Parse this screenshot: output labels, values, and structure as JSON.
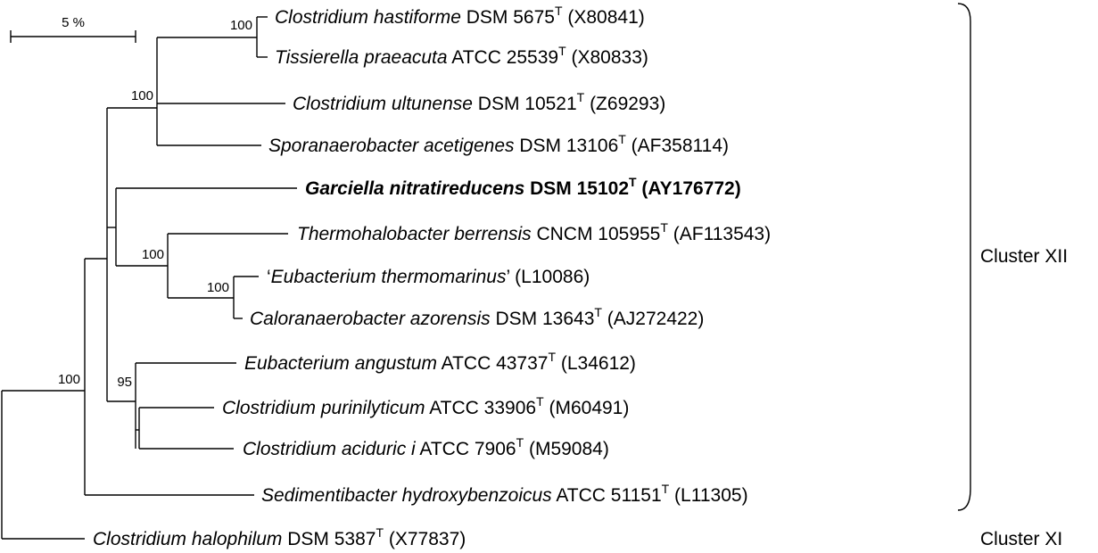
{
  "scale_bar": {
    "label": "5 %"
  },
  "bootstrap": {
    "b1": "100",
    "b2": "100",
    "b3": "100",
    "b4": "100",
    "b5": "95",
    "b6": "100"
  },
  "taxa": [
    {
      "genus_species": "Clostridium hastiforme",
      "strain": " DSM 5675",
      "type_mark": "T",
      "accession": " (X80841)"
    },
    {
      "genus_species": "Tissierella praeacuta",
      "strain": " ATCC 25539",
      "type_mark": "T",
      "accession": " (X80833)"
    },
    {
      "genus_species": "Clostridium ultunense",
      "strain": " DSM 10521",
      "type_mark": "T",
      "accession": " (Z69293)"
    },
    {
      "genus_species": "Sporanaerobacter acetigenes",
      "strain": " DSM 13106",
      "type_mark": "T",
      "accession": " (AF358114)"
    },
    {
      "genus_species": "Garciella nitratireducens",
      "strain": " DSM 15102",
      "type_mark": "T",
      "accession": " (AY176772)"
    },
    {
      "genus_species": "Thermohalobacter berrensis",
      "strain": " CNCM 105955",
      "type_mark": "T",
      "accession": " (AF113543)"
    },
    {
      "prefix": "‘",
      "genus_species": "Eubacterium thermomarinus",
      "strain": "’ (L10086)",
      "type_mark": "",
      "accession": ""
    },
    {
      "genus_species": "Caloranaerobacter azorensis",
      "strain": " DSM 13643",
      "type_mark": "T",
      "accession": " (AJ272422)"
    },
    {
      "genus_species": "Eubacterium angustum",
      "strain": " ATCC 43737",
      "type_mark": "T",
      "accession": " (L34612)"
    },
    {
      "genus_species": "Clostridium purinilyticum",
      "strain": " ATCC 33906",
      "type_mark": "T",
      "accession": " (M60491)"
    },
    {
      "genus_species": "Clostridium aciduric i",
      "strain": " ATCC 7906",
      "type_mark": "T",
      "accession": " (M59084)"
    },
    {
      "genus_species": "Sedimentibacter hydroxybenzoicus",
      "strain": " ATCC 51151",
      "type_mark": "T",
      "accession": " (L11305)"
    },
    {
      "genus_species": "Clostridium halophilum",
      "strain": " DSM 5387",
      "type_mark": "T",
      "accession": " (X77837)"
    }
  ],
  "clusters": {
    "xii": "Cluster XII",
    "xi": "Cluster XI"
  }
}
